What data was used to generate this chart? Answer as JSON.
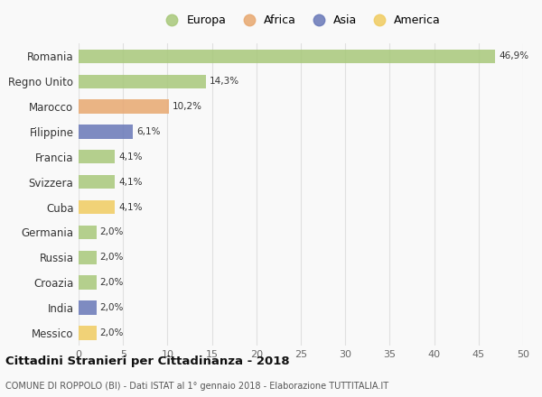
{
  "countries": [
    "Romania",
    "Regno Unito",
    "Marocco",
    "Filippine",
    "Francia",
    "Svizzera",
    "Cuba",
    "Germania",
    "Russia",
    "Croazia",
    "India",
    "Messico"
  ],
  "values": [
    46.9,
    14.3,
    10.2,
    6.1,
    4.1,
    4.1,
    4.1,
    2.0,
    2.0,
    2.0,
    2.0,
    2.0
  ],
  "labels": [
    "46,9%",
    "14,3%",
    "10,2%",
    "6,1%",
    "4,1%",
    "4,1%",
    "4,1%",
    "2,0%",
    "2,0%",
    "2,0%",
    "2,0%",
    "2,0%"
  ],
  "colors": [
    "#a8c87a",
    "#a8c87a",
    "#e8a870",
    "#6878b8",
    "#a8c87a",
    "#a8c87a",
    "#f0cc60",
    "#a8c87a",
    "#a8c87a",
    "#a8c87a",
    "#6878b8",
    "#f0cc60"
  ],
  "legend_labels": [
    "Europa",
    "Africa",
    "Asia",
    "America"
  ],
  "legend_colors": [
    "#a8c87a",
    "#e8a870",
    "#6878b8",
    "#f0cc60"
  ],
  "xlim": [
    0,
    50
  ],
  "xticks": [
    0,
    5,
    10,
    15,
    20,
    25,
    30,
    35,
    40,
    45,
    50
  ],
  "title": "Cittadini Stranieri per Cittadinanza - 2018",
  "subtitle": "COMUNE DI ROPPOLO (BI) - Dati ISTAT al 1° gennaio 2018 - Elaborazione TUTTITALIA.IT",
  "background_color": "#f9f9f9",
  "grid_color": "#e0e0e0"
}
